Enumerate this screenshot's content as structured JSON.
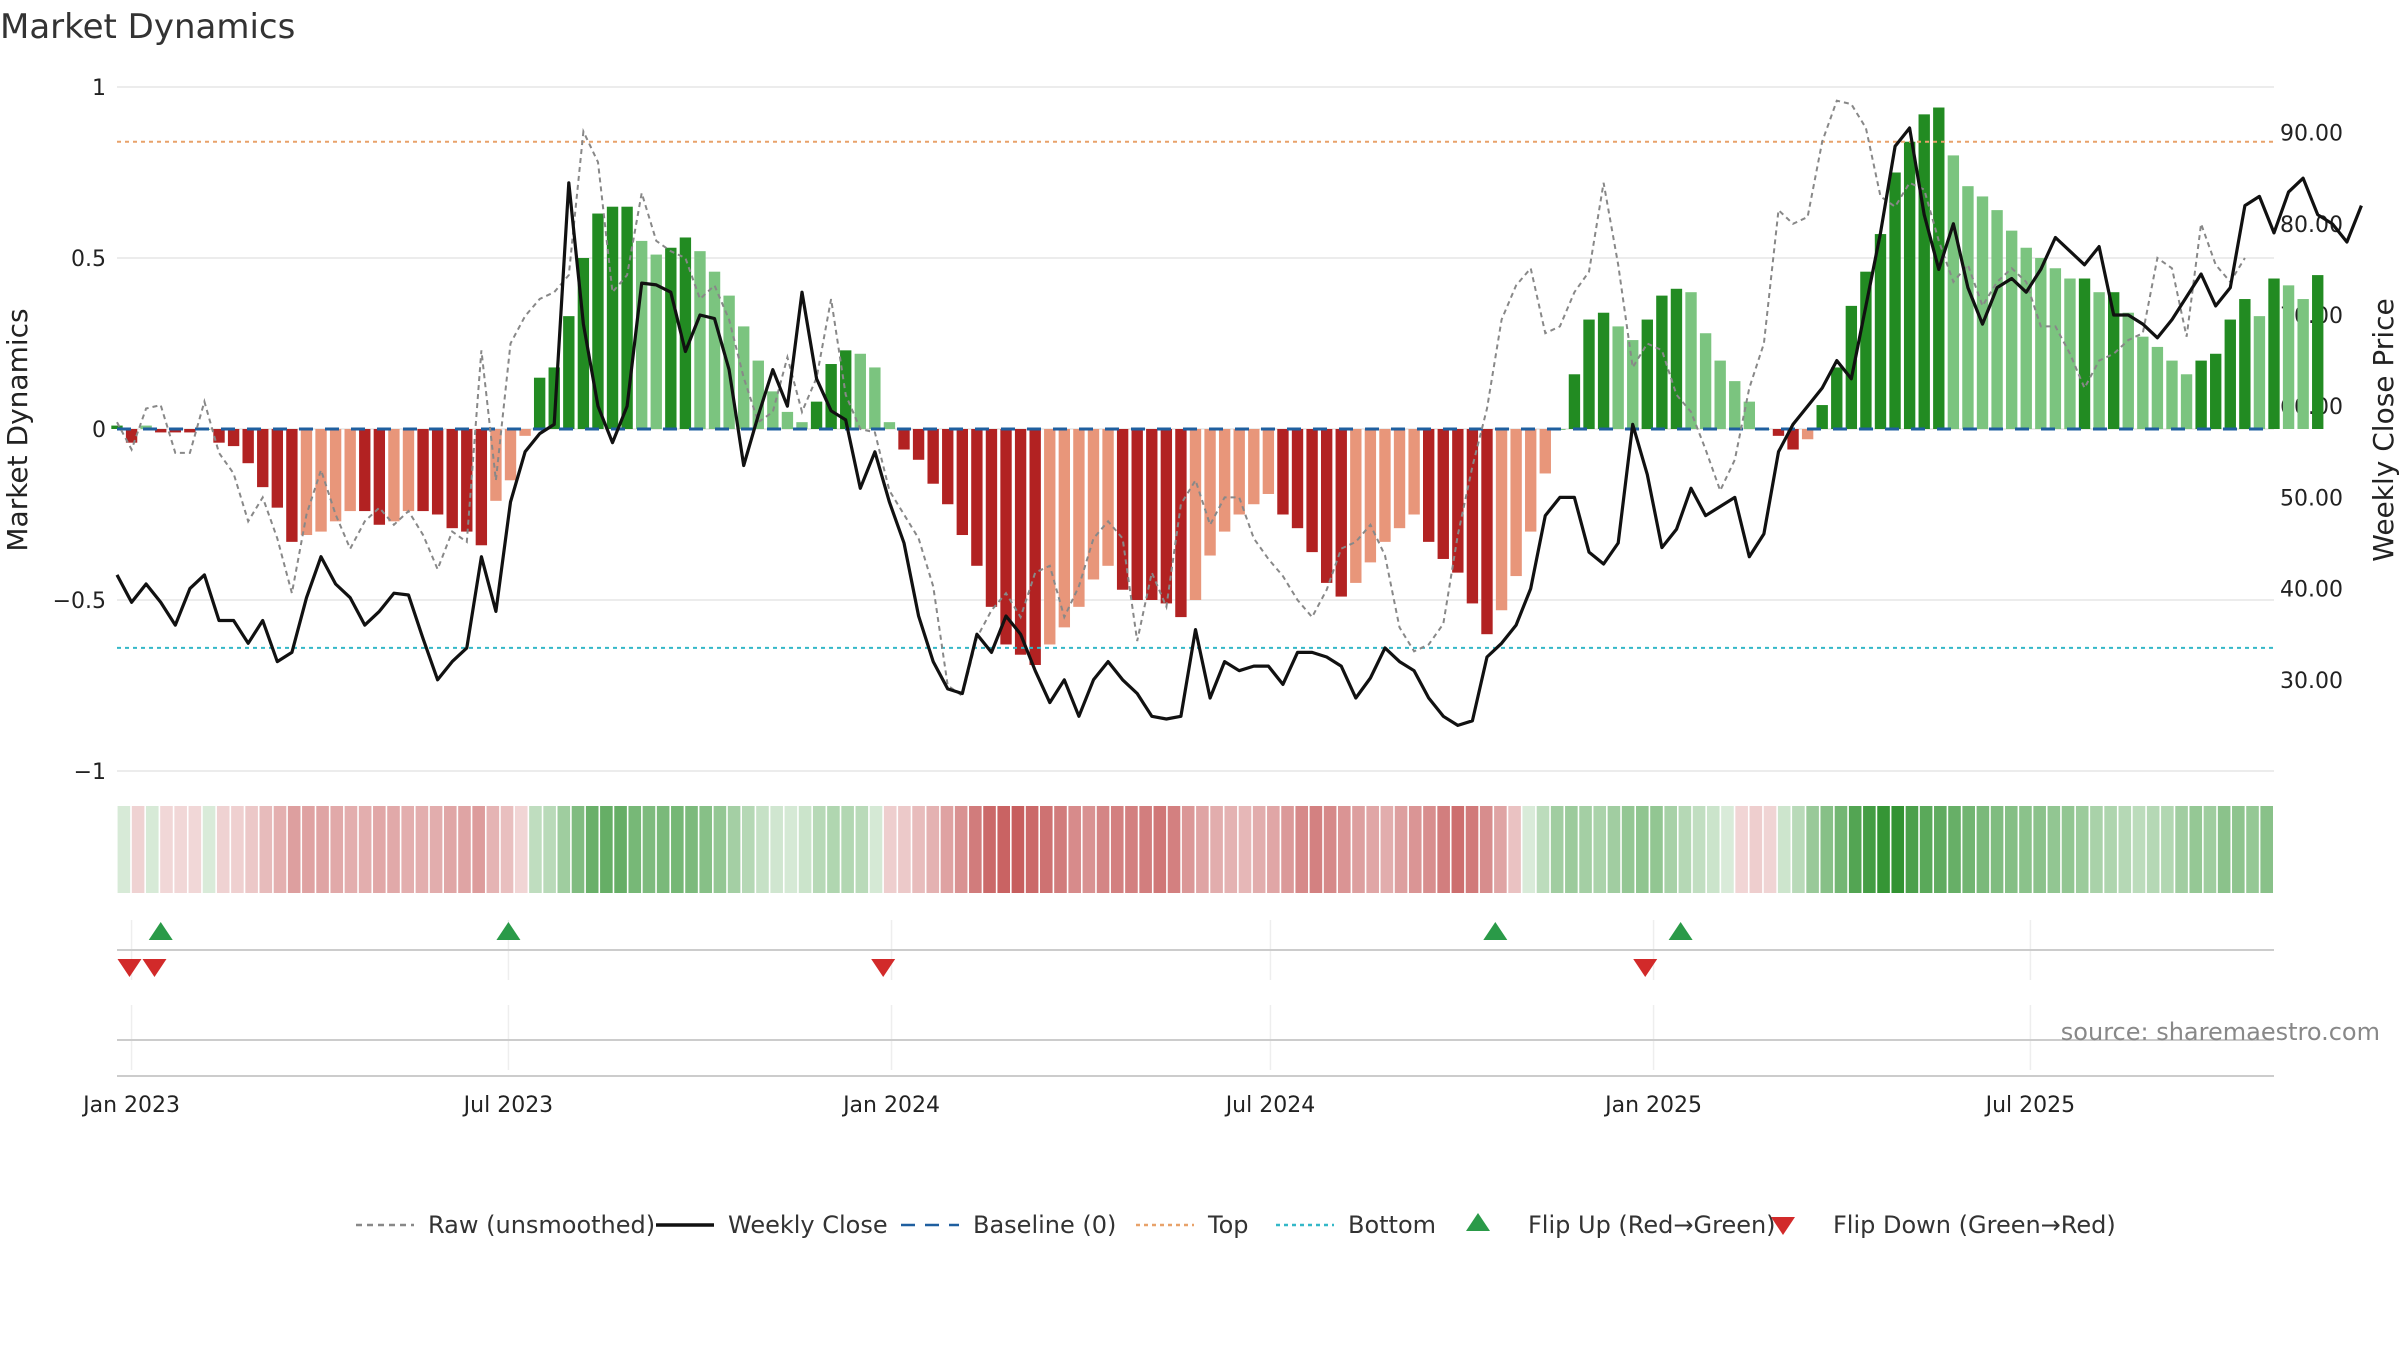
{
  "chart_data": {
    "type": "bar",
    "title": "Market Dynamics",
    "ylabel_left": "Market Dynamics",
    "ylabel_right": "Weekly Close Price",
    "ylim_left": [
      -1,
      1
    ],
    "ylim_right": [
      20,
      95
    ],
    "yticks_left": [
      {
        "value": 1,
        "label": "1"
      },
      {
        "value": 0.5,
        "label": "0.5"
      },
      {
        "value": 0,
        "label": "0"
      },
      {
        "value": -0.5,
        "label": "−0.5"
      },
      {
        "value": -1,
        "label": "−1"
      }
    ],
    "yticks_right": [
      {
        "value": 90,
        "label": "90.00"
      },
      {
        "value": 80,
        "label": "80.00"
      },
      {
        "value": 70,
        "label": "70.00"
      },
      {
        "value": 60,
        "label": "60.00"
      },
      {
        "value": 50,
        "label": "50.00"
      },
      {
        "value": 40,
        "label": "40.00"
      },
      {
        "value": 30,
        "label": "30.00"
      }
    ],
    "x_start": "2022-12-25",
    "x_end": "2025-10-26",
    "xticks": [
      {
        "date": "2023-01-01",
        "label": "Jan 2023"
      },
      {
        "date": "2023-07-01",
        "label": "Jul 2023"
      },
      {
        "date": "2024-01-01",
        "label": "Jan 2024"
      },
      {
        "date": "2024-07-01",
        "label": "Jul 2024"
      },
      {
        "date": "2025-01-01",
        "label": "Jan 2025"
      },
      {
        "date": "2025-07-01",
        "label": "Jul 2025"
      }
    ],
    "top_line": 0.84,
    "bottom_line": -0.64,
    "weeks_first": "2022-12-25",
    "dynamics": [
      0.01,
      -0.04,
      0.01,
      -0.01,
      -0.01,
      -0.01,
      0.0,
      -0.04,
      -0.05,
      -0.1,
      -0.17,
      -0.23,
      -0.33,
      -0.31,
      -0.3,
      -0.27,
      -0.24,
      -0.24,
      -0.28,
      -0.27,
      -0.24,
      -0.24,
      -0.25,
      -0.29,
      -0.3,
      -0.34,
      -0.21,
      -0.15,
      -0.02,
      0.15,
      0.18,
      0.33,
      0.5,
      0.63,
      0.65,
      0.65,
      0.55,
      0.51,
      0.53,
      0.56,
      0.52,
      0.46,
      0.39,
      0.3,
      0.2,
      0.11,
      0.05,
      0.02,
      0.08,
      0.19,
      0.23,
      0.22,
      0.18,
      0.02,
      -0.06,
      -0.09,
      -0.16,
      -0.22,
      -0.31,
      -0.4,
      -0.52,
      -0.63,
      -0.66,
      -0.69,
      -0.63,
      -0.58,
      -0.52,
      -0.44,
      -0.4,
      -0.47,
      -0.5,
      -0.5,
      -0.51,
      -0.55,
      -0.5,
      -0.37,
      -0.3,
      -0.25,
      -0.22,
      -0.19,
      -0.25,
      -0.29,
      -0.36,
      -0.45,
      -0.49,
      -0.45,
      -0.39,
      -0.33,
      -0.29,
      -0.25,
      -0.33,
      -0.38,
      -0.42,
      -0.51,
      -0.6,
      -0.53,
      -0.43,
      -0.3,
      -0.13,
      0.0,
      0.16,
      0.32,
      0.34,
      0.3,
      0.26,
      0.32,
      0.39,
      0.41,
      0.4,
      0.28,
      0.2,
      0.14,
      0.08,
      0.0,
      -0.02,
      -0.06,
      -0.03,
      0.07,
      0.18,
      0.36,
      0.46,
      0.57,
      0.75,
      0.84,
      0.92,
      0.94,
      0.8,
      0.71,
      0.68,
      0.64,
      0.58,
      0.53,
      0.5,
      0.47,
      0.44,
      0.44,
      0.4,
      0.4,
      0.34,
      0.27,
      0.24,
      0.2,
      0.16,
      0.2,
      0.22,
      0.32,
      0.38,
      0.33,
      0.44,
      0.42,
      0.38,
      0.45
    ],
    "close": [
      41.5,
      38.5,
      40.5,
      38.5,
      36,
      40,
      41.5,
      36.5,
      36.5,
      34,
      36.5,
      32,
      33,
      39,
      43.5,
      40.5,
      39,
      36,
      37.5,
      39.5,
      39.3,
      34.5,
      30,
      32,
      33.5,
      43.5,
      37.5,
      49.5,
      55,
      57,
      58,
      84.5,
      69,
      60,
      56,
      60,
      73.5,
      73.3,
      72.5,
      66,
      70,
      69.6,
      64,
      53.5,
      59,
      64,
      60,
      72.5,
      63,
      59.5,
      58.5,
      51,
      55,
      49.5,
      45,
      37,
      32,
      29,
      28.5,
      35,
      33,
      37,
      35,
      31,
      27.5,
      30,
      26,
      30,
      32,
      30,
      28.5,
      26,
      25.7,
      26,
      35.5,
      28,
      32,
      31,
      31.5,
      31.5,
      29.5,
      33,
      33,
      32.5,
      31.5,
      28,
      30.2,
      33.5,
      32,
      31,
      28,
      26,
      25,
      25.5,
      32.5,
      34,
      36,
      40,
      48,
      50,
      50,
      44,
      42.7,
      45,
      58,
      52.5,
      44.5,
      46.5,
      51,
      48,
      49,
      50,
      43.5,
      46,
      55,
      58,
      60,
      62,
      65,
      63,
      71,
      79,
      88.5,
      90.5,
      81,
      75,
      80,
      73,
      69,
      73,
      74,
      72.5,
      75,
      78.5,
      77,
      75.5,
      77.5,
      70,
      70,
      69,
      67.5,
      69.5,
      72,
      74.5,
      71,
      73,
      82,
      83,
      79,
      83.5,
      85,
      81,
      80,
      78,
      82
    ],
    "raw": [
      0.02,
      -0.06,
      0.06,
      0.07,
      -0.07,
      -0.07,
      0.08,
      -0.07,
      -0.13,
      -0.27,
      -0.2,
      -0.32,
      -0.48,
      -0.25,
      -0.12,
      -0.25,
      -0.35,
      -0.27,
      -0.23,
      -0.28,
      -0.24,
      -0.31,
      -0.41,
      -0.3,
      -0.33,
      0.23,
      -0.15,
      0.25,
      0.33,
      0.38,
      0.4,
      0.45,
      0.87,
      0.78,
      0.4,
      0.45,
      0.69,
      0.55,
      0.52,
      0.5,
      0.38,
      0.42,
      0.32,
      0.15,
      0.02,
      0.05,
      0.21,
      0.05,
      0.15,
      0.38,
      0.1,
      0.0,
      -0.01,
      -0.18,
      -0.25,
      -0.32,
      -0.46,
      -0.75,
      -0.78,
      -0.61,
      -0.53,
      -0.48,
      -0.55,
      -0.42,
      -0.4,
      -0.55,
      -0.46,
      -0.32,
      -0.27,
      -0.32,
      -0.62,
      -0.42,
      -0.52,
      -0.22,
      -0.15,
      -0.28,
      -0.2,
      -0.2,
      -0.32,
      -0.38,
      -0.43,
      -0.5,
      -0.55,
      -0.47,
      -0.35,
      -0.33,
      -0.28,
      -0.37,
      -0.58,
      -0.65,
      -0.63,
      -0.57,
      -0.31,
      -0.11,
      0.06,
      0.32,
      0.42,
      0.47,
      0.28,
      0.3,
      0.4,
      0.46,
      0.72,
      0.48,
      0.18,
      0.25,
      0.23,
      0.1,
      0.05,
      -0.06,
      -0.18,
      -0.09,
      0.12,
      0.25,
      0.64,
      0.6,
      0.62,
      0.84,
      0.96,
      0.95,
      0.88,
      0.68,
      0.65,
      0.72,
      0.7,
      0.55,
      0.43,
      0.48,
      0.36,
      0.43,
      0.47,
      0.43,
      0.3,
      0.3,
      0.22,
      0.12,
      0.2,
      0.22,
      0.26,
      0.28,
      0.5,
      0.47,
      0.27,
      0.6,
      0.48,
      0.43,
      0.5
    ],
    "flip_up_dates": [
      "2023-01-15",
      "2023-07-01",
      "2024-10-17",
      "2025-01-14"
    ],
    "flip_down_dates": [
      "2022-12-31",
      "2023-01-12",
      "2023-12-28",
      "2024-12-28"
    ],
    "legend": [
      {
        "label": "Raw (unsmoothed)",
        "kind": "dashed-line",
        "color": "#888888"
      },
      {
        "label": "Weekly Close",
        "kind": "line",
        "color": "#111111"
      },
      {
        "label": "Baseline (0)",
        "kind": "dashed-line",
        "color": "#1f5f9f"
      },
      {
        "label": "Top",
        "kind": "dotted-line",
        "color": "#e8a26a"
      },
      {
        "label": "Bottom",
        "kind": "dotted-line",
        "color": "#34b8c8"
      },
      {
        "label": "Flip Up (Red→Green)",
        "kind": "triangle-up",
        "color": "#2a9a48"
      },
      {
        "label": "Flip Down (Green→Red)",
        "kind": "triangle-down",
        "color": "#d22a2a"
      }
    ],
    "source": "source: sharemaestro.com"
  },
  "colors": {
    "pos_strong": "#228b22",
    "pos_weak": "#7bc47f",
    "neg_strong": "#b22222",
    "neg_weak": "#e8967a",
    "grid": "#e6e6e6"
  }
}
